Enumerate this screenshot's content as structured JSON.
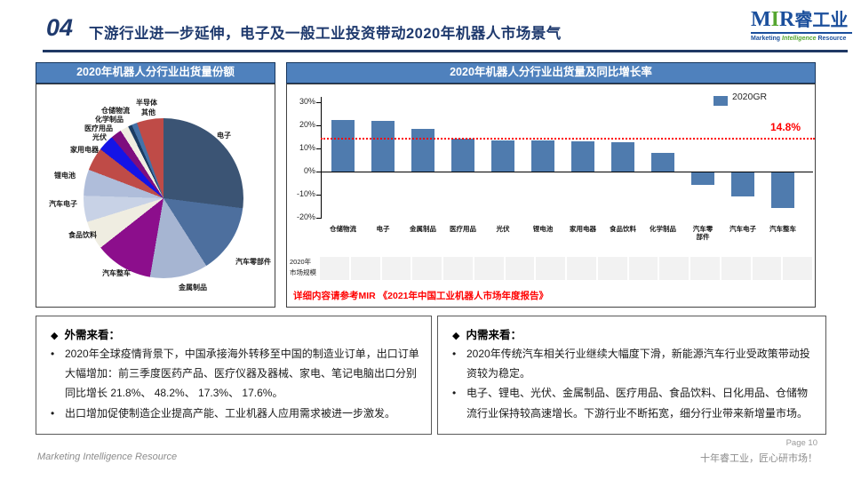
{
  "header": {
    "number": "04",
    "title": "下游行业进一步延伸，电子及一般工业投资带动2020年机器人市场景气"
  },
  "logo": {
    "m": "M",
    "i": "I",
    "r": "R",
    "cn": "睿工业",
    "tag1": "Marketing",
    "tag2": "Intelligence",
    "tag3": "Resource"
  },
  "ui": {
    "bullet": "•"
  },
  "pie_panel": {
    "title": "2020年机器人分行业出货量份额"
  },
  "bar_panel": {
    "title": "2020年机器人分行业出货量及同比增长率",
    "market_label_1": "2020年",
    "market_label_2": "市场规模",
    "market_cells": 16,
    "note": "详细内容请参考MIR 《2021年中国工业机器人市场年度报告》"
  },
  "chart_data": [
    {
      "type": "pie",
      "title": "2020年机器人分行业出货量份额",
      "slices": [
        {
          "label": "电子",
          "value": 27.0,
          "color": "#3B5474"
        },
        {
          "label": "汽车零部件",
          "value": 14.0,
          "color": "#4D6F9E"
        },
        {
          "label": "金属制品",
          "value": 11.7,
          "color": "#A6B5D2"
        },
        {
          "label": "汽车整车",
          "value": 11.7,
          "color": "#8C0E8C"
        },
        {
          "label": "食品饮料",
          "value": 5.8,
          "color": "#EFEDE1"
        },
        {
          "label": "汽车电子",
          "value": 5.3,
          "color": "#C8D2E6"
        },
        {
          "label": "锂电池",
          "value": 5.3,
          "color": "#AFBDDA"
        },
        {
          "label": "家用电器",
          "value": 4.7,
          "color": "#BF4B47"
        },
        {
          "label": "光伏",
          "value": 3.3,
          "color": "#1414E6"
        },
        {
          "label": "医疗用品",
          "value": 2.2,
          "color": "#7E0E7E"
        },
        {
          "label": "化学制品",
          "value": 1.7,
          "color": "#EFEDE1"
        },
        {
          "label": "仓储物流",
          "value": 0.8,
          "color": "#1B3C63"
        },
        {
          "label": "半导体",
          "value": 1.1,
          "color": "#4472A8"
        },
        {
          "label": "其他",
          "value": 5.4,
          "color": "#BF4B47"
        }
      ]
    },
    {
      "type": "bar",
      "title": "2020年机器人分行业出货量及同比增长率",
      "categories": [
        "仓储物流",
        "电子",
        "金属制品",
        "医疗用品",
        "光伏",
        "锂电池",
        "家用电器",
        "食品饮料",
        "化学制品",
        "汽车零部件",
        "汽车电子",
        "汽车整车"
      ],
      "values": [
        22.5,
        21.8,
        18.3,
        14.4,
        13.3,
        13.3,
        13.2,
        12.6,
        8.2,
        -5.5,
        -10.2,
        -15.5
      ],
      "ylim": [
        -20,
        30
      ],
      "yticks": [
        30,
        20,
        10,
        0,
        -10,
        -20
      ],
      "ytick_suffix": "%",
      "legend": "2020GR",
      "legend_position": "top-right",
      "grid": false,
      "bar_color": "#4F7BAE",
      "refline": {
        "value": 14.8,
        "label": "14.8%",
        "color": "#FF0000"
      }
    }
  ],
  "boxes": {
    "left": {
      "marker": "◆",
      "title": "外需来看：",
      "bullets": [
        "2020年全球疫情背景下，中国承接海外转移至中国的制造业订单，出口订单大幅增加：前三季度医药产品、医疗仪器及器械、家电、笔记电脑出口分别同比增长 21.8%、 48.2%、 17.3%、 17.6%。",
        "出口增加促使制造企业提高产能、工业机器人应用需求被进一步激发。"
      ]
    },
    "right": {
      "marker": "◆",
      "title": "内需来看：",
      "bullets": [
        "2020年传统汽车相关行业继续大幅度下滑，新能源汽车行业受政策带动投资较为稳定。",
        "电子、锂电、光伏、金属制品、医疗用品、食品饮料、日化用品、仓储物流行业保持较高速增长。下游行业不断拓宽，细分行业带来新增量市场。"
      ]
    }
  },
  "footer": {
    "left": "Marketing Intelligence Resource",
    "page": "Page 10",
    "slogan": "十年睿工业，匠心研市场！"
  }
}
